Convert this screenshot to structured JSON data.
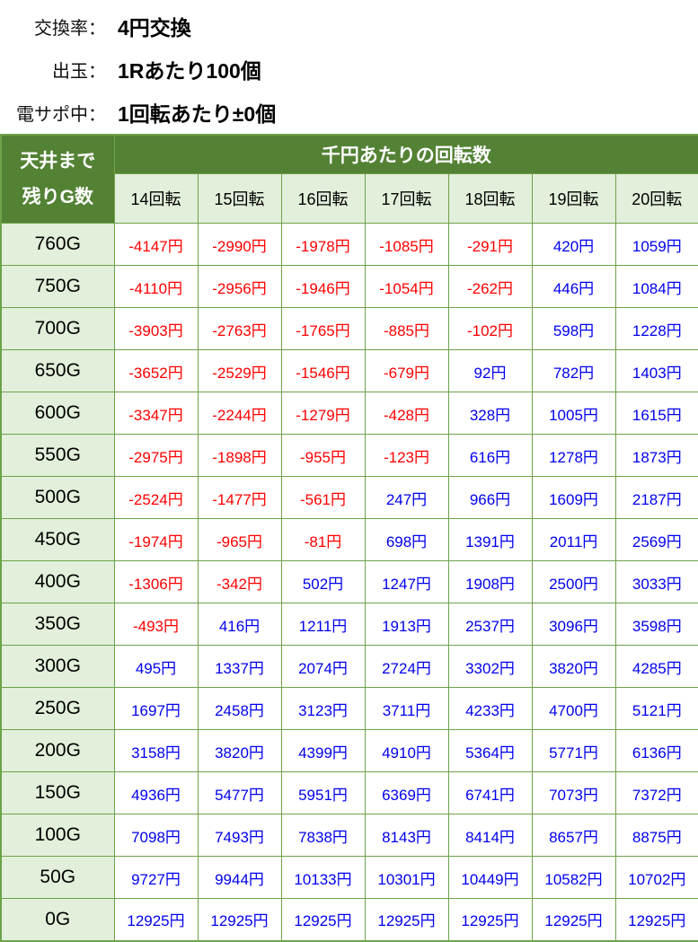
{
  "info": {
    "rows": [
      {
        "label": "交換率：",
        "value": "4円交換"
      },
      {
        "label": "出玉：",
        "value": "1Rあたり100個"
      },
      {
        "label": "電サポ中：",
        "value": "1回転あたり±0個"
      }
    ]
  },
  "table": {
    "corner_line1": "天井まで",
    "corner_line2": "残りG数",
    "group_header": "千円あたりの回転数",
    "column_headers": [
      "14回転",
      "15回転",
      "16回転",
      "17回転",
      "18回転",
      "19回転",
      "20回転"
    ],
    "rows": [
      {
        "g": "760G",
        "values": [
          "-4147円",
          "-2990円",
          "-1978円",
          "-1085円",
          "-291円",
          "420円",
          "1059円"
        ]
      },
      {
        "g": "750G",
        "values": [
          "-4110円",
          "-2956円",
          "-1946円",
          "-1054円",
          "-262円",
          "446円",
          "1084円"
        ]
      },
      {
        "g": "700G",
        "values": [
          "-3903円",
          "-2763円",
          "-1765円",
          "-885円",
          "-102円",
          "598円",
          "1228円"
        ]
      },
      {
        "g": "650G",
        "values": [
          "-3652円",
          "-2529円",
          "-1546円",
          "-679円",
          "92円",
          "782円",
          "1403円"
        ]
      },
      {
        "g": "600G",
        "values": [
          "-3347円",
          "-2244円",
          "-1279円",
          "-428円",
          "328円",
          "1005円",
          "1615円"
        ]
      },
      {
        "g": "550G",
        "values": [
          "-2975円",
          "-1898円",
          "-955円",
          "-123円",
          "616円",
          "1278円",
          "1873円"
        ]
      },
      {
        "g": "500G",
        "values": [
          "-2524円",
          "-1477円",
          "-561円",
          "247円",
          "966円",
          "1609円",
          "2187円"
        ]
      },
      {
        "g": "450G",
        "values": [
          "-1974円",
          "-965円",
          "-81円",
          "698円",
          "1391円",
          "2011円",
          "2569円"
        ]
      },
      {
        "g": "400G",
        "values": [
          "-1306円",
          "-342円",
          "502円",
          "1247円",
          "1908円",
          "2500円",
          "3033円"
        ]
      },
      {
        "g": "350G",
        "values": [
          "-493円",
          "416円",
          "1211円",
          "1913円",
          "2537円",
          "3096円",
          "3598円"
        ]
      },
      {
        "g": "300G",
        "values": [
          "495円",
          "1337円",
          "2074円",
          "2724円",
          "3302円",
          "3820円",
          "4285円"
        ]
      },
      {
        "g": "250G",
        "values": [
          "1697円",
          "2458円",
          "3123円",
          "3711円",
          "4233円",
          "4700円",
          "5121円"
        ]
      },
      {
        "g": "200G",
        "values": [
          "3158円",
          "3820円",
          "4399円",
          "4910円",
          "5364円",
          "5771円",
          "6136円"
        ]
      },
      {
        "g": "150G",
        "values": [
          "4936円",
          "5477円",
          "5951円",
          "6369円",
          "6741円",
          "7073円",
          "7372円"
        ]
      },
      {
        "g": "100G",
        "values": [
          "7098円",
          "7493円",
          "7838円",
          "8143円",
          "8414円",
          "8657円",
          "8875円"
        ]
      },
      {
        "g": "50G",
        "values": [
          "9727円",
          "9944円",
          "10133円",
          "10301円",
          "10449円",
          "10582円",
          "10702円"
        ]
      },
      {
        "g": "0G",
        "values": [
          "12925円",
          "12925円",
          "12925円",
          "12925円",
          "12925円",
          "12925円",
          "12925円"
        ]
      }
    ]
  },
  "colors": {
    "header_green": "#548235",
    "light_green": "#e2efda",
    "border_green": "#6da24b",
    "negative_red": "#ff0000",
    "positive_blue": "#0000ee",
    "header_text": "#ffffff"
  }
}
